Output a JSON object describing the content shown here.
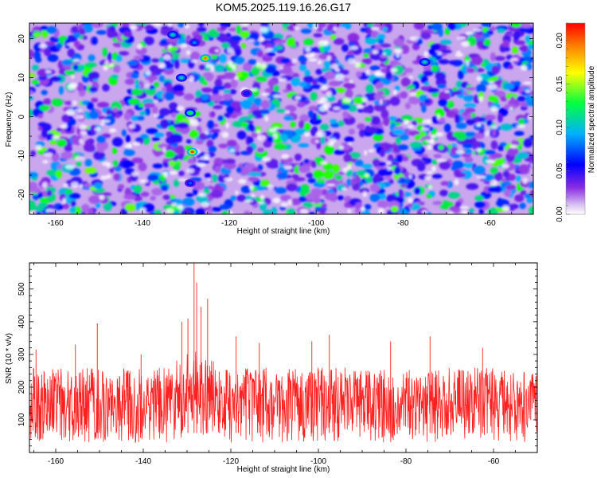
{
  "title": "KOM5.2025.119.16.26.G17",
  "chart_data": [
    {
      "type": "heatmap",
      "xlabel": "Height of straight line (km)",
      "ylabel": "Frequency (Hz)",
      "xlim": [
        -166,
        -50
      ],
      "ylim": [
        -25,
        24
      ],
      "x_ticks": [
        "-160",
        "-140",
        "-120",
        "-100",
        "-80",
        "-60"
      ],
      "y_ticks": [
        "-20",
        "-10",
        "0",
        "10",
        "20"
      ],
      "colorbar": {
        "label": "Normalized spectral amplitude",
        "range": [
          0,
          0.22
        ],
        "ticks": [
          "0.00",
          "0.05",
          "0.10",
          "0.15",
          "0.20"
        ],
        "colormap": [
          "#ffffff",
          "#8a2be2",
          "#0000ff",
          "#00b0ff",
          "#00ff00",
          "#ffff00",
          "#ff0000"
        ]
      },
      "peaks": [
        {
          "x": -125.5,
          "y": 15,
          "value": 0.2
        },
        {
          "x": -128.5,
          "y": -9,
          "value": 0.21
        },
        {
          "x": -129,
          "y": 1,
          "value": 0.14
        },
        {
          "x": -133,
          "y": 21,
          "value": 0.12
        },
        {
          "x": -131,
          "y": 10,
          "value": 0.12
        },
        {
          "x": -75,
          "y": 14,
          "value": 0.12
        },
        {
          "x": -128,
          "y": 19,
          "value": 0.1
        },
        {
          "x": -129,
          "y": -17,
          "value": 0.09
        },
        {
          "x": -116,
          "y": 6,
          "value": 0.08
        }
      ],
      "grid": false
    },
    {
      "type": "line",
      "xlabel": "Height of straight line (km)",
      "ylabel": "SNR (10 * v/v)",
      "xlim": [
        -166,
        -50
      ],
      "ylim": [
        0,
        580
      ],
      "x_ticks": [
        "-160",
        "-140",
        "-120",
        "-100",
        "-80",
        "-60"
      ],
      "y_ticks": [
        "100",
        "200",
        "300",
        "400",
        "500"
      ],
      "series": [
        {
          "color": "#ff2020",
          "baseline": 115,
          "noise_band": [
            30,
            260
          ],
          "spikes": [
            {
              "x": -128.4,
              "y": 580
            },
            {
              "x": -127.8,
              "y": 520
            },
            {
              "x": -125.3,
              "y": 470
            },
            {
              "x": -126.8,
              "y": 445
            },
            {
              "x": -131.2,
              "y": 400
            },
            {
              "x": -129.8,
              "y": 410
            },
            {
              "x": -150.5,
              "y": 395
            },
            {
              "x": -97.5,
              "y": 360
            },
            {
              "x": -118.8,
              "y": 355
            },
            {
              "x": -74.5,
              "y": 355
            },
            {
              "x": -101.5,
              "y": 340
            },
            {
              "x": -113.5,
              "y": 335
            },
            {
              "x": -155.5,
              "y": 330
            },
            {
              "x": -164.5,
              "y": 315
            },
            {
              "x": -83.5,
              "y": 340
            },
            {
              "x": -62.5,
              "y": 320
            },
            {
              "x": -140.5,
              "y": 300
            }
          ]
        }
      ],
      "grid": false
    }
  ]
}
